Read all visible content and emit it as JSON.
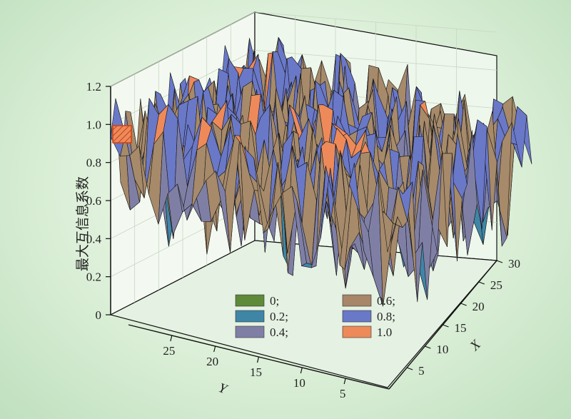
{
  "chart_data": {
    "type": "surface3d",
    "title": "",
    "zlabel": "最大互信息系数",
    "xlabel": "X",
    "ylabel": "Y",
    "z_ticks": [
      "0",
      "0.2",
      "0.4",
      "0.6",
      "0.8",
      "1.0",
      "1.2"
    ],
    "x_ticks": [
      "5",
      "10",
      "15",
      "20",
      "25",
      "30"
    ],
    "y_ticks": [
      "5",
      "10",
      "15",
      "20",
      "25"
    ],
    "zlim": [
      0,
      1.2
    ],
    "xlim": [
      1,
      30
    ],
    "ylim": [
      1,
      30
    ],
    "grid": true,
    "legend": {
      "position": "bottom-center",
      "entries": [
        {
          "label": "0;",
          "color": "#5e8a3a"
        },
        {
          "label": "0.2;",
          "color": "#3f86a6"
        },
        {
          "label": "0.4;",
          "color": "#7f7fa6"
        },
        {
          "label": "0.6;",
          "color": "#a8866a"
        },
        {
          "label": "0.8;",
          "color": "#6a78c8"
        },
        {
          "label": "1.0",
          "color": "#ee8a5a"
        }
      ]
    },
    "surface": {
      "grid_size": 30,
      "z_min_approx": 0.35,
      "z_max_approx": 1.15,
      "z_typical": 0.85,
      "diagonal_highlight_value": 1.0
    }
  }
}
